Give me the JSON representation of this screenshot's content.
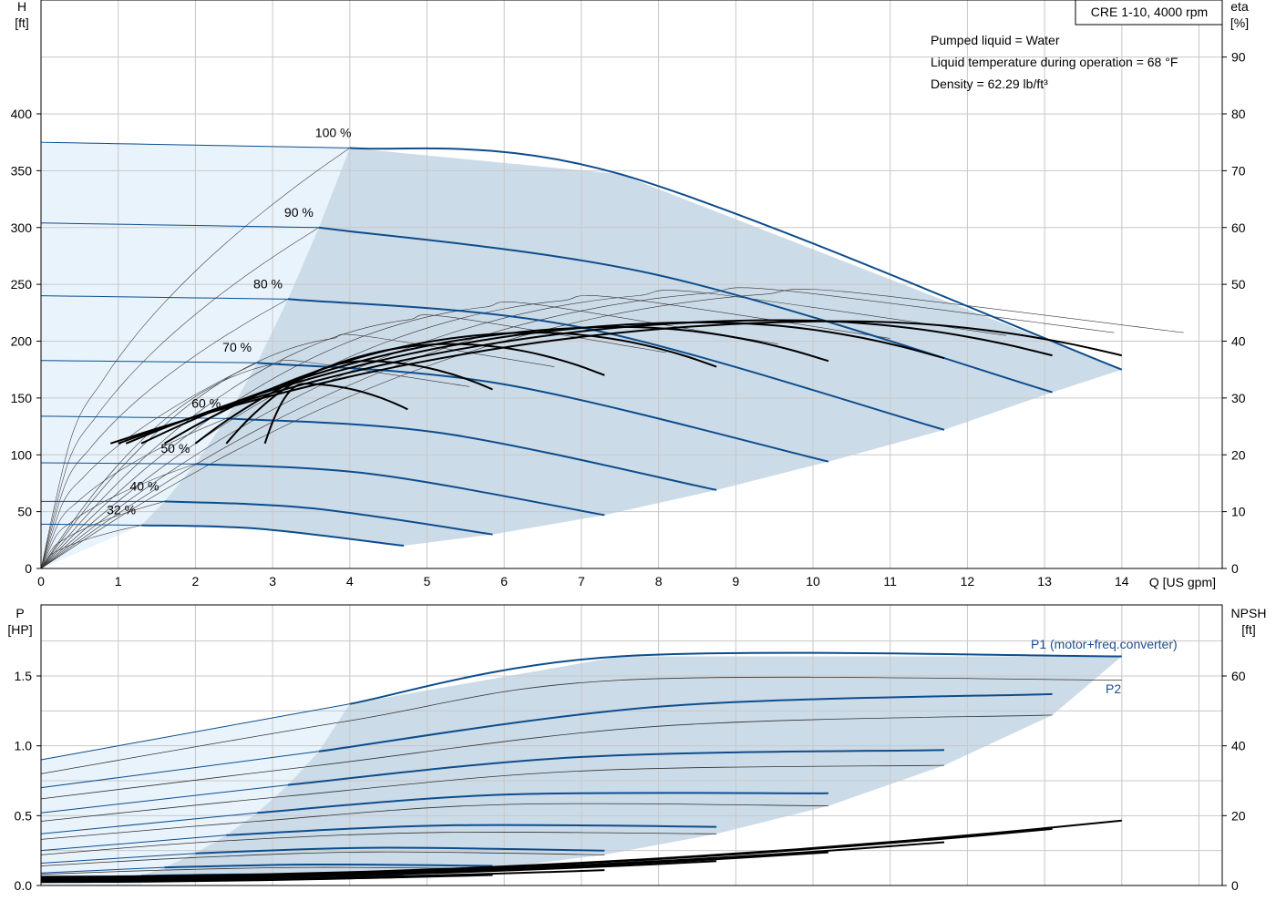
{
  "colors": {
    "curve_blue": "#0d4d8c",
    "region_light": "#e9f3fc",
    "region_blue": "#ccdbe8",
    "efficiency": "#000000",
    "grid": "#c8c8c8"
  },
  "info": {
    "product": "CRE 1-10, 4000 rpm",
    "liquid": "Pumped liquid = Water",
    "temperature": "Liquid temperature during operation = 68 °F",
    "density": "Density = 62.29 lb/ft³"
  },
  "chart_data": [
    {
      "type": "line",
      "name": "head-efficiency",
      "xlabel": "Q [US gpm]",
      "ylabel": "H\n[ft]",
      "y2label": "eta\n[%]",
      "xlim": [
        0,
        15
      ],
      "ylim": [
        0,
        400
      ],
      "y2lim": [
        0,
        100
      ],
      "grid": true,
      "x_ticks": [
        "0",
        "1",
        "2",
        "3",
        "4",
        "5",
        "6",
        "7",
        "8",
        "9",
        "10",
        "11",
        "12",
        "13",
        "14"
      ],
      "y_ticks": [
        "0",
        "50",
        "100",
        "150",
        "200",
        "250",
        "300",
        "350",
        "400"
      ],
      "y2_ticks": [
        "0",
        "10",
        "20",
        "30",
        "40",
        "50",
        "60",
        "70",
        "80",
        "90"
      ],
      "x_axis_label": "Q [US gpm]",
      "y_axis_label_line1": "H",
      "y_axis_label_line2": "[ft]",
      "y2_axis_label_line1": "eta",
      "y2_axis_label_line2": "[%]",
      "speed_curves": [
        {
          "label": "100 %",
          "points": [
            [
              0,
              375
            ],
            [
              4,
              370
            ],
            [
              7.5,
              347
            ],
            [
              14,
              175
            ]
          ]
        },
        {
          "label": "90 %",
          "points": [
            [
              0,
              304
            ],
            [
              3.6,
              300
            ],
            [
              8,
              258
            ],
            [
              13.1,
              155
            ]
          ]
        },
        {
          "label": "80 %",
          "points": [
            [
              0,
              240
            ],
            [
              3.2,
              237
            ],
            [
              7,
              212
            ],
            [
              11.7,
              122
            ]
          ]
        },
        {
          "label": "70 %",
          "points": [
            [
              0,
              183
            ],
            [
              2.8,
              181
            ],
            [
              6,
              162
            ],
            [
              10.2,
              94
            ]
          ]
        },
        {
          "label": "60 %",
          "points": [
            [
              0,
              134
            ],
            [
              2.4,
              132
            ],
            [
              5.2,
              119
            ],
            [
              8.75,
              69
            ]
          ]
        },
        {
          "label": "50 %",
          "points": [
            [
              0,
              93
            ],
            [
              2,
              92
            ],
            [
              4.3,
              83
            ],
            [
              7.3,
              47
            ]
          ]
        },
        {
          "label": "40 %",
          "points": [
            [
              0,
              59
            ],
            [
              1.6,
              59
            ],
            [
              3.5,
              53
            ],
            [
              5.85,
              30
            ]
          ]
        },
        {
          "label": "32 %",
          "points": [
            [
              0,
              39
            ],
            [
              1.3,
              38
            ],
            [
              2.8,
              35
            ],
            [
              4.7,
              20
            ]
          ]
        }
      ],
      "efficiency_curves_eta": [
        {
          "end": [
            4.75,
            28
          ],
          "peak": [
            3.4,
            32.5
          ],
          "start_x": 2.9
        },
        {
          "end": [
            5.85,
            31.5
          ],
          "peak": [
            4.2,
            36.5
          ],
          "start_x": 2.4
        },
        {
          "end": [
            7.3,
            34
          ],
          "peak": [
            5.3,
            39.5
          ],
          "start_x": 2.0
        },
        {
          "end": [
            8.75,
            35.5
          ],
          "peak": [
            6.4,
            41.5
          ],
          "start_x": 1.6
        },
        {
          "end": [
            10.2,
            36.5
          ],
          "peak": [
            7.5,
            42.5
          ],
          "start_x": 1.3
        },
        {
          "end": [
            11.7,
            37
          ],
          "peak": [
            8.6,
            43.3
          ],
          "start_x": 1.1
        },
        {
          "end": [
            13.1,
            37.5
          ],
          "peak": [
            9.6,
            43.7
          ],
          "start_x": 1.0
        },
        {
          "end": [
            14,
            37.5
          ],
          "peak": [
            10.4,
            43.5
          ],
          "start_x": 0.9
        }
      ]
    },
    {
      "type": "line",
      "name": "power-npsh",
      "xlabel": "Q [US gpm]",
      "ylim": [
        0,
        1.8
      ],
      "y2lim": [
        0,
        72
      ],
      "grid": true,
      "y_ticks": [
        "0.0",
        "0.5",
        "1.0",
        "1.5"
      ],
      "y2_ticks": [
        "0",
        "20",
        "40",
        "60"
      ],
      "y_axis_label_line1": "P",
      "y_axis_label_line2": "[HP]",
      "y2_axis_label_line1": "NPSH",
      "y2_axis_label_line2": "[ft]",
      "series_labels": {
        "p1": "P1 (motor+freq.converter)",
        "p2": "P2"
      },
      "p1_curves": [
        {
          "points": [
            [
              0,
              0.9
            ],
            [
              4,
              1.3
            ],
            [
              7.5,
              1.64
            ],
            [
              14,
              1.64
            ]
          ]
        },
        {
          "points": [
            [
              0,
              0.7
            ],
            [
              3.6,
              0.96
            ],
            [
              8,
              1.28
            ],
            [
              13.1,
              1.37
            ]
          ]
        },
        {
          "points": [
            [
              0,
              0.52
            ],
            [
              3.2,
              0.72
            ],
            [
              7,
              0.92
            ],
            [
              11.7,
              0.97
            ]
          ]
        },
        {
          "points": [
            [
              0,
              0.37
            ],
            [
              2.8,
              0.52
            ],
            [
              6,
              0.65
            ],
            [
              10.2,
              0.66
            ]
          ]
        },
        {
          "points": [
            [
              0,
              0.25
            ],
            [
              2.4,
              0.36
            ],
            [
              5.2,
              0.43
            ],
            [
              8.75,
              0.42
            ]
          ]
        },
        {
          "points": [
            [
              0,
              0.16
            ],
            [
              2,
              0.23
            ],
            [
              4.3,
              0.27
            ],
            [
              7.3,
              0.25
            ]
          ]
        },
        {
          "points": [
            [
              0,
              0.09
            ],
            [
              1.6,
              0.13
            ],
            [
              3.5,
              0.15
            ],
            [
              5.85,
              0.14
            ]
          ]
        },
        {
          "points": [
            [
              0,
              0.05
            ],
            [
              1.3,
              0.07
            ],
            [
              2.8,
              0.08
            ],
            [
              4.7,
              0.07
            ]
          ]
        }
      ],
      "p2_curves": [
        {
          "points": [
            [
              0,
              0.8
            ],
            [
              4,
              1.18
            ],
            [
              7.5,
              1.47
            ],
            [
              14,
              1.47
            ]
          ]
        },
        {
          "points": [
            [
              0,
              0.62
            ],
            [
              3.6,
              0.86
            ],
            [
              8,
              1.14
            ],
            [
              13.1,
              1.22
            ]
          ]
        },
        {
          "points": [
            [
              0,
              0.46
            ],
            [
              3.2,
              0.64
            ],
            [
              7,
              0.82
            ],
            [
              11.7,
              0.86
            ]
          ]
        },
        {
          "points": [
            [
              0,
              0.33
            ],
            [
              2.8,
              0.46
            ],
            [
              6,
              0.58
            ],
            [
              10.2,
              0.57
            ]
          ]
        },
        {
          "points": [
            [
              0,
              0.22
            ],
            [
              2.4,
              0.32
            ],
            [
              5.2,
              0.38
            ],
            [
              8.75,
              0.37
            ]
          ]
        },
        {
          "points": [
            [
              0,
              0.14
            ],
            [
              2,
              0.2
            ],
            [
              4.3,
              0.24
            ],
            [
              7.3,
              0.22
            ]
          ]
        },
        {
          "points": [
            [
              0,
              0.08
            ],
            [
              1.6,
              0.11
            ],
            [
              3.5,
              0.13
            ],
            [
              5.85,
              0.12
            ]
          ]
        },
        {
          "points": [
            [
              0,
              0.04
            ],
            [
              1.3,
              0.06
            ],
            [
              2.8,
              0.07
            ],
            [
              4.7,
              0.06
            ]
          ]
        }
      ],
      "npsh_curves_ft": [
        {
          "points": [
            [
              0,
              1.0
            ],
            [
              4.7,
              2.4
            ]
          ]
        },
        {
          "points": [
            [
              0,
              1.2
            ],
            [
              5.85,
              3.0
            ]
          ]
        },
        {
          "points": [
            [
              0,
              1.5
            ],
            [
              7.3,
              4.4
            ]
          ]
        },
        {
          "points": [
            [
              0,
              1.8
            ],
            [
              8.75,
              7.0
            ]
          ]
        },
        {
          "points": [
            [
              0,
              2.0
            ],
            [
              10.2,
              9.5
            ]
          ]
        },
        {
          "points": [
            [
              0,
              2.2
            ],
            [
              11.7,
              12.4
            ]
          ]
        },
        {
          "points": [
            [
              0,
              2.4
            ],
            [
              13.1,
              16.2
            ]
          ]
        },
        {
          "points": [
            [
              0,
              2.5
            ],
            [
              14,
              18.6
            ]
          ]
        }
      ]
    }
  ]
}
